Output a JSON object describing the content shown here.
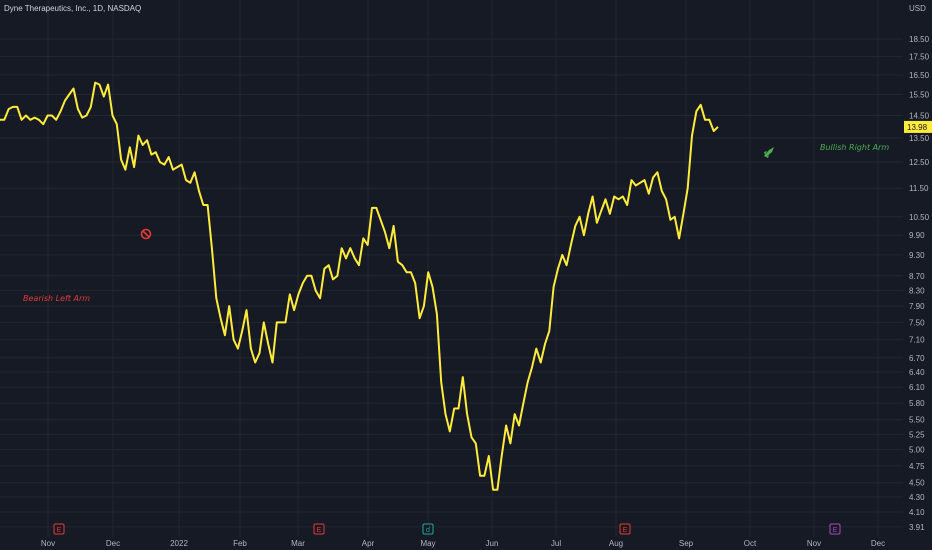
{
  "header": {
    "title": "Dyne Therapeutics, Inc., 1D, NASDAQ",
    "currency": "USD"
  },
  "colors": {
    "background": "#161a25",
    "line": "#ffeb3b",
    "grid": "#22262f",
    "bearish": "#e53935",
    "bullish": "#4caf50",
    "axis_text": "#b2b5be"
  },
  "chart_data": {
    "type": "line",
    "scale": "log",
    "grid": true,
    "ylim": [
      3.85,
      20.2
    ],
    "y_ticks": [
      3.91,
      4.1,
      4.3,
      4.5,
      4.75,
      5.0,
      5.25,
      5.5,
      5.8,
      6.1,
      6.4,
      6.7,
      7.1,
      7.5,
      7.9,
      8.3,
      8.7,
      9.3,
      9.9,
      10.5,
      11.5,
      12.5,
      13.5,
      14.5,
      15.5,
      16.5,
      17.5,
      18.5
    ],
    "x_ticks": [
      "Nov",
      "Dec",
      "2022",
      "Feb",
      "Mar",
      "Apr",
      "May",
      "Jun",
      "Jul",
      "Aug",
      "Sep",
      "Oct",
      "Nov",
      "Dec"
    ],
    "last_price": "13.98",
    "series": [
      {
        "values": [
          14.3,
          14.3,
          14.8,
          14.9,
          14.9,
          14.3,
          14.5,
          14.3,
          14.4,
          14.3,
          14.1,
          14.5,
          14.5,
          14.3,
          14.7,
          15.2,
          15.5,
          15.8,
          14.8,
          14.4,
          14.5,
          14.9,
          16.1,
          16.0,
          15.4,
          16.0,
          14.5,
          14.1,
          12.6,
          12.2,
          13.1,
          12.3,
          13.6,
          13.2,
          13.4,
          12.8,
          12.9,
          12.5,
          12.4,
          12.7,
          12.2,
          12.3,
          12.4,
          11.8,
          11.7,
          12.1,
          11.4,
          10.9,
          10.9,
          9.5,
          8.1,
          7.6,
          7.2,
          7.9,
          7.1,
          6.9,
          7.3,
          7.8,
          6.9,
          6.6,
          6.8,
          7.5,
          7.0,
          6.6,
          7.5,
          7.5,
          7.5,
          8.2,
          7.8,
          8.2,
          8.5,
          8.7,
          8.7,
          8.3,
          8.1,
          8.9,
          9.0,
          8.6,
          8.7,
          9.5,
          9.2,
          9.5,
          9.2,
          9.0,
          9.8,
          9.6,
          10.8,
          10.8,
          10.4,
          10.0,
          9.5,
          10.2,
          9.1,
          9.0,
          8.8,
          8.8,
          8.5,
          7.6,
          7.9,
          8.8,
          8.4,
          7.7,
          6.2,
          5.6,
          5.3,
          5.7,
          5.7,
          6.3,
          5.6,
          5.2,
          5.1,
          4.6,
          4.6,
          4.9,
          4.4,
          4.4,
          4.9,
          5.4,
          5.1,
          5.6,
          5.4,
          5.8,
          6.2,
          6.5,
          6.9,
          6.6,
          7.0,
          7.3,
          8.4,
          8.9,
          9.3,
          9.0,
          9.6,
          10.2,
          10.5,
          9.9,
          10.6,
          11.2,
          10.3,
          10.7,
          11.1,
          10.6,
          11.2,
          11.1,
          11.2,
          10.9,
          11.8,
          11.6,
          11.7,
          11.8,
          11.3,
          11.9,
          12.1,
          11.4,
          11.1,
          10.4,
          10.5,
          9.8,
          10.6,
          11.5,
          13.6,
          14.7,
          15.0,
          14.3,
          14.3,
          13.8,
          13.98
        ]
      }
    ],
    "annotations": [
      {
        "text": "Bearish Left Arm",
        "kind": "bearish"
      },
      {
        "text": "Bullish Right Arm",
        "kind": "bullish"
      }
    ],
    "event_markers": [
      {
        "label": "E",
        "kind": "earnings"
      },
      {
        "label": "E",
        "kind": "earnings"
      },
      {
        "label": "E",
        "kind": "earnings"
      },
      {
        "label": "E",
        "kind": "earnings-upcoming"
      },
      {
        "label": "ɗ",
        "kind": "dividend"
      }
    ]
  }
}
